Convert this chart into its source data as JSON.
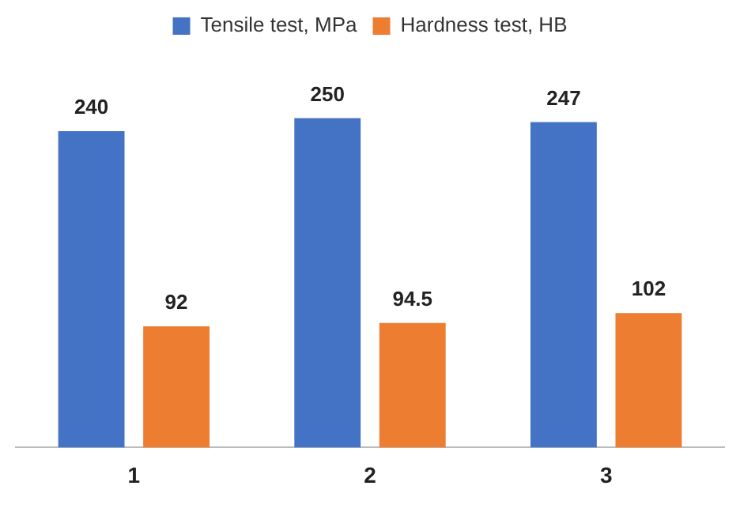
{
  "chart_data": {
    "type": "bar",
    "categories": [
      "1",
      "2",
      "3"
    ],
    "series": [
      {
        "name": "Tensile test, MPa",
        "color": "#4472c4",
        "values": [
          240,
          250,
          247
        ]
      },
      {
        "name": "Hardness test, HB",
        "color": "#ed7d31",
        "values": [
          92,
          94.5,
          102
        ]
      }
    ],
    "data_labels": true,
    "legend": "top",
    "grid": false,
    "tick_labels": "x"
  }
}
